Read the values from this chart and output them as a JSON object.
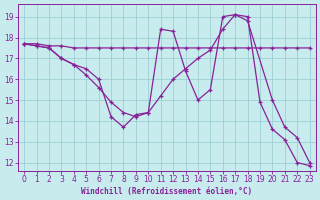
{
  "bg_color": "#c8ecee",
  "grid_color": "#9dd0d4",
  "line_color": "#882299",
  "spine_color": "#882299",
  "xlim": [
    -0.5,
    23.5
  ],
  "ylim": [
    11.6,
    19.6
  ],
  "xticks": [
    0,
    1,
    2,
    3,
    4,
    5,
    6,
    7,
    8,
    9,
    10,
    11,
    12,
    13,
    14,
    15,
    16,
    17,
    18,
    19,
    20,
    21,
    22,
    23
  ],
  "yticks": [
    12,
    13,
    14,
    15,
    16,
    17,
    18,
    19
  ],
  "xlabel": "Windchill (Refroidissement éolien,°C)",
  "series1_x": [
    0,
    1,
    2,
    3,
    4,
    5,
    6,
    7,
    8,
    9,
    10,
    11,
    12,
    13,
    14,
    15,
    16,
    17,
    18,
    19,
    20,
    21,
    22,
    23
  ],
  "series1_y": [
    17.7,
    17.7,
    17.6,
    17.6,
    17.5,
    17.5,
    17.5,
    17.5,
    17.5,
    17.5,
    17.5,
    17.5,
    17.5,
    17.5,
    17.5,
    17.5,
    17.5,
    17.5,
    17.5,
    17.5,
    17.5,
    17.5,
    17.5,
    17.5
  ],
  "series2_x": [
    0,
    1,
    2,
    3,
    4,
    5,
    6,
    7,
    8,
    9,
    10,
    11,
    12,
    13,
    14,
    15,
    16,
    17,
    18,
    20,
    21,
    22,
    23
  ],
  "series2_y": [
    17.7,
    17.6,
    17.5,
    17.0,
    16.7,
    16.5,
    16.0,
    14.2,
    13.7,
    14.3,
    14.4,
    18.4,
    18.3,
    16.4,
    15.0,
    15.5,
    19.0,
    19.1,
    18.8,
    15.0,
    13.7,
    13.2,
    12.0
  ],
  "series3_x": [
    0,
    1,
    2,
    3,
    4,
    5,
    6,
    7,
    8,
    9,
    10,
    11,
    12,
    13,
    14,
    15,
    16,
    17,
    18,
    19,
    20,
    21,
    22,
    23
  ],
  "series3_y": [
    17.7,
    17.6,
    17.5,
    17.0,
    16.7,
    16.2,
    15.6,
    14.9,
    14.4,
    14.2,
    14.4,
    15.2,
    16.0,
    16.5,
    17.0,
    17.4,
    18.4,
    19.1,
    19.0,
    14.9,
    13.6,
    13.1,
    12.0,
    11.85
  ]
}
